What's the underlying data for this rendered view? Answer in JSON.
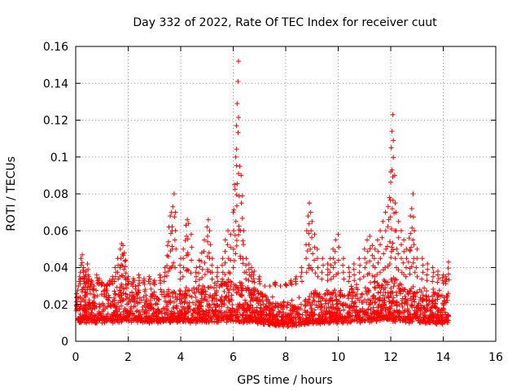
{
  "chart_data": {
    "type": "scatter",
    "title": "Day 332 of 2022, Rate Of TEC Index for receiver cuut",
    "xlabel": "GPS time / hours",
    "ylabel": "ROTI / TECUs",
    "xlim": [
      0,
      16
    ],
    "ylim": [
      0,
      0.16
    ],
    "xticks": [
      0,
      2,
      4,
      6,
      8,
      10,
      12,
      14,
      16
    ],
    "yticks": [
      0,
      0.02,
      0.04,
      0.06,
      0.08,
      0.1,
      0.12,
      0.14,
      0.16
    ],
    "xtick_labels": [
      "0",
      "2",
      "4",
      "6",
      "8",
      "10",
      "12",
      "14",
      "16"
    ],
    "ytick_labels": [
      "0",
      "0.02",
      "0.04",
      "0.06",
      "0.08",
      "0.1",
      "0.12",
      "0.14",
      "0.16"
    ],
    "grid": true,
    "marker": "+",
    "color": "#ff0000",
    "series": [
      {
        "name": "ROTI",
        "x": [
          0.05,
          0.1,
          0.15,
          0.2,
          0.25,
          0.3,
          0.35,
          0.4,
          0.45,
          0.5,
          0.6,
          0.7,
          0.8,
          0.9,
          1.0,
          1.1,
          1.2,
          1.3,
          1.4,
          1.5,
          1.6,
          1.7,
          1.75,
          1.8,
          1.85,
          1.9,
          2.0,
          2.2,
          2.4,
          2.6,
          2.8,
          3.0,
          3.2,
          3.4,
          3.5,
          3.55,
          3.6,
          3.65,
          3.7,
          3.75,
          3.8,
          4.0,
          4.1,
          4.2,
          4.25,
          4.3,
          4.4,
          4.6,
          4.7,
          4.8,
          4.9,
          5.0,
          5.05,
          5.1,
          5.2,
          5.4,
          5.6,
          5.7,
          5.8,
          5.9,
          6.0,
          6.05,
          6.1,
          6.12,
          6.15,
          6.18,
          6.2,
          6.25,
          6.3,
          6.35,
          6.4,
          6.5,
          6.6,
          6.7,
          6.8,
          7.0,
          7.2,
          7.4,
          7.6,
          7.8,
          8.0,
          8.2,
          8.4,
          8.6,
          8.8,
          8.85,
          8.9,
          8.95,
          9.0,
          9.1,
          9.2,
          9.4,
          9.6,
          9.7,
          9.8,
          9.9,
          10.0,
          10.2,
          10.4,
          10.6,
          10.8,
          11.0,
          11.1,
          11.2,
          11.3,
          11.4,
          11.5,
          11.6,
          11.7,
          11.8,
          11.9,
          11.95,
          12.0,
          12.02,
          12.05,
          12.08,
          12.1,
          12.15,
          12.2,
          12.3,
          12.4,
          12.5,
          12.6,
          12.7,
          12.75,
          12.8,
          12.85,
          12.9,
          13.0,
          13.2,
          13.4,
          13.6,
          13.8,
          14.0,
          14.1,
          14.2
        ],
        "y": [
          0.02,
          0.03,
          0.035,
          0.045,
          0.047,
          0.04,
          0.035,
          0.038,
          0.042,
          0.035,
          0.033,
          0.03,
          0.036,
          0.034,
          0.032,
          0.03,
          0.031,
          0.033,
          0.035,
          0.04,
          0.045,
          0.05,
          0.053,
          0.052,
          0.048,
          0.044,
          0.035,
          0.034,
          0.036,
          0.034,
          0.035,
          0.033,
          0.036,
          0.04,
          0.052,
          0.062,
          0.068,
          0.07,
          0.073,
          0.08,
          0.07,
          0.045,
          0.05,
          0.063,
          0.066,
          0.064,
          0.058,
          0.04,
          0.044,
          0.048,
          0.055,
          0.062,
          0.066,
          0.06,
          0.045,
          0.04,
          0.045,
          0.055,
          0.06,
          0.058,
          0.07,
          0.085,
          0.1,
          0.117,
          0.129,
          0.141,
          0.152,
          0.095,
          0.09,
          0.079,
          0.06,
          0.045,
          0.042,
          0.04,
          0.038,
          0.035,
          0.03,
          0.03,
          0.032,
          0.03,
          0.031,
          0.033,
          0.035,
          0.04,
          0.06,
          0.068,
          0.075,
          0.07,
          0.065,
          0.058,
          0.05,
          0.045,
          0.042,
          0.045,
          0.05,
          0.055,
          0.058,
          0.045,
          0.04,
          0.042,
          0.045,
          0.05,
          0.055,
          0.057,
          0.052,
          0.05,
          0.055,
          0.06,
          0.065,
          0.07,
          0.073,
          0.078,
          0.092,
          0.105,
          0.114,
          0.123,
          0.109,
          0.09,
          0.07,
          0.065,
          0.06,
          0.055,
          0.05,
          0.056,
          0.068,
          0.072,
          0.08,
          0.06,
          0.05,
          0.045,
          0.042,
          0.04,
          0.038,
          0.036,
          0.035,
          0.043
        ]
      }
    ],
    "envelope": {
      "description_x": [
        0,
        0.5,
        1,
        1.5,
        2,
        3,
        4,
        5,
        6,
        7,
        8,
        9,
        10,
        11,
        12,
        13,
        14,
        14.2
      ],
      "upper": [
        0.03,
        0.032,
        0.028,
        0.03,
        0.033,
        0.028,
        0.03,
        0.032,
        0.035,
        0.028,
        0.022,
        0.027,
        0.03,
        0.032,
        0.036,
        0.03,
        0.027,
        0.028
      ],
      "lower": [
        0.006,
        0.006,
        0.006,
        0.006,
        0.006,
        0.006,
        0.006,
        0.006,
        0.006,
        0.006,
        0.005,
        0.006,
        0.006,
        0.006,
        0.006,
        0.006,
        0.006,
        0.006
      ]
    }
  }
}
